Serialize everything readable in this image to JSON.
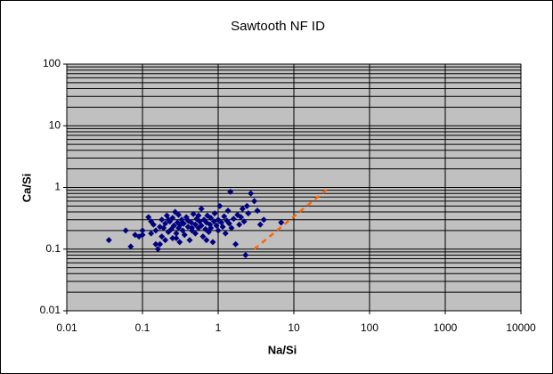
{
  "chart_data": {
    "type": "scatter",
    "title": "Sawtooth NF ID",
    "xlabel": "Na/Si",
    "ylabel": "Ca/Si",
    "xscale": "log",
    "yscale": "log",
    "xlim": [
      0.01,
      10000
    ],
    "ylim": [
      0.01,
      100
    ],
    "xticks": [
      0.01,
      0.1,
      1,
      10,
      100,
      1000,
      10000
    ],
    "yticks": [
      0.01,
      0.1,
      1,
      10,
      100
    ],
    "grid": true,
    "minor_grid_y": true,
    "background": "#c0c0c0",
    "series": [
      {
        "color": "#000080",
        "mode": "markers",
        "x": [
          0.036,
          0.06,
          0.07,
          0.08,
          0.09,
          0.1,
          0.1,
          0.12,
          0.13,
          0.14,
          0.15,
          0.15,
          0.16,
          0.17,
          0.18,
          0.18,
          0.19,
          0.2,
          0.2,
          0.21,
          0.22,
          0.23,
          0.24,
          0.25,
          0.25,
          0.26,
          0.27,
          0.28,
          0.29,
          0.3,
          0.3,
          0.31,
          0.32,
          0.33,
          0.34,
          0.35,
          0.36,
          0.38,
          0.4,
          0.4,
          0.42,
          0.44,
          0.45,
          0.47,
          0.5,
          0.5,
          0.52,
          0.55,
          0.57,
          0.6,
          0.6,
          0.63,
          0.65,
          0.68,
          0.7,
          0.72,
          0.75,
          0.78,
          0.8,
          0.8,
          0.85,
          0.88,
          0.9,
          0.95,
          1.0,
          1.0,
          1.05,
          1.1,
          1.15,
          1.2,
          1.25,
          1.3,
          1.35,
          1.4,
          1.45,
          1.5,
          1.6,
          1.7,
          1.8,
          1.9,
          2.0,
          2.1,
          2.2,
          2.3,
          2.4,
          2.5,
          2.7,
          3.0,
          3.3,
          3.6,
          4.0,
          6.8,
          0.13,
          0.17,
          0.22,
          0.28,
          0.35,
          0.45,
          0.55,
          0.7
        ],
        "values": [
          0.14,
          0.2,
          0.11,
          0.17,
          0.16,
          0.2,
          0.17,
          0.33,
          0.28,
          0.25,
          0.12,
          0.2,
          0.1,
          0.23,
          0.3,
          0.16,
          0.22,
          0.26,
          0.14,
          0.35,
          0.19,
          0.28,
          0.21,
          0.32,
          0.15,
          0.24,
          0.4,
          0.18,
          0.27,
          0.22,
          0.36,
          0.13,
          0.25,
          0.3,
          0.2,
          0.26,
          0.17,
          0.33,
          0.23,
          0.29,
          0.14,
          0.27,
          0.2,
          0.37,
          0.25,
          0.18,
          0.31,
          0.22,
          0.28,
          0.24,
          0.45,
          0.16,
          0.3,
          0.21,
          0.27,
          0.35,
          0.19,
          0.25,
          0.32,
          0.22,
          0.13,
          0.28,
          0.38,
          0.24,
          0.3,
          0.2,
          0.5,
          0.27,
          0.23,
          0.34,
          0.18,
          0.29,
          0.42,
          0.26,
          0.85,
          0.22,
          0.31,
          0.12,
          0.36,
          0.25,
          0.33,
          0.45,
          0.28,
          0.08,
          0.5,
          0.38,
          0.8,
          0.6,
          0.42,
          0.25,
          0.3,
          0.27,
          0.18,
          0.12,
          0.3,
          0.15,
          0.26,
          0.22,
          0.35,
          0.14
        ]
      },
      {
        "color": "#ff6600",
        "mode": "line",
        "dash": true,
        "x": [
          3,
          28
        ],
        "values": [
          0.1,
          0.95
        ]
      }
    ]
  }
}
